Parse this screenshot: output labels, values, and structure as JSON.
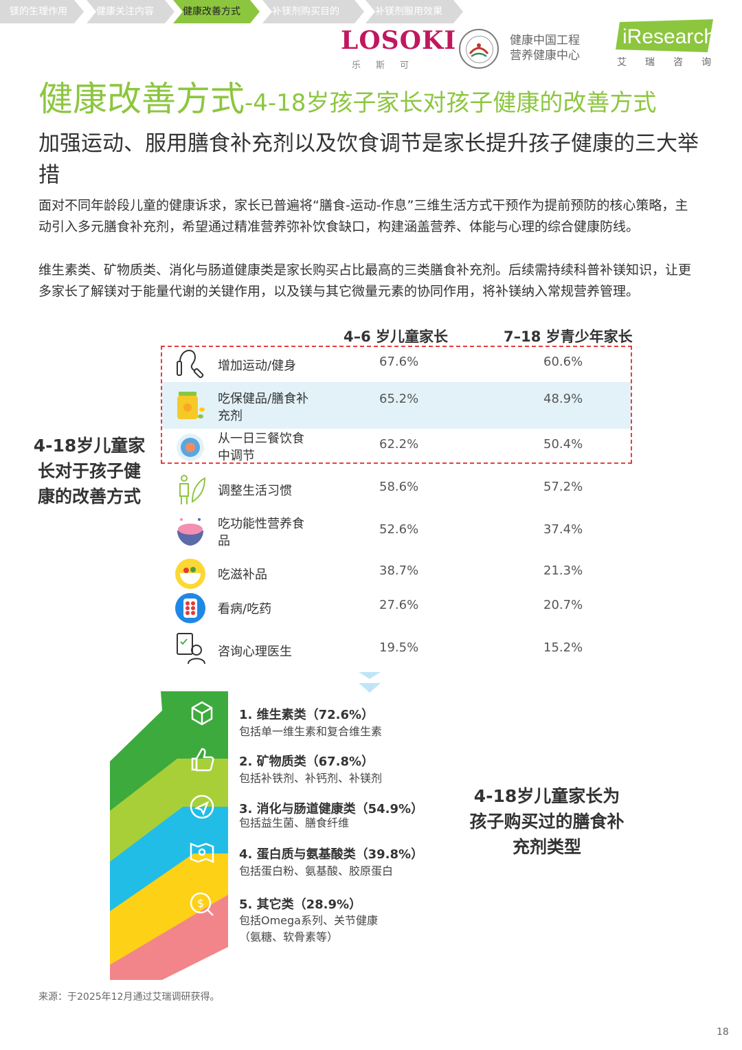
{
  "nav": {
    "items": [
      {
        "label": "镁的生理作用"
      },
      {
        "label": "健康关注内容"
      },
      {
        "label": "健康改善方式"
      },
      {
        "label": "补镁剂购买目的"
      },
      {
        "label": "补镁剂服用效果"
      }
    ],
    "active_index": 2
  },
  "logos": {
    "losoki": {
      "name": "LOSOKI",
      "sub": "乐斯可"
    },
    "center": {
      "line1": "健康中国工程",
      "line2": "营养健康中心"
    },
    "iresearch": {
      "name": "iResearch",
      "sub": "艾瑞咨询"
    }
  },
  "title": {
    "main": "健康改善方式",
    "rest": "-4-18岁孩子家长对孩子健康的改善方式"
  },
  "subtitle": "加强运动、服用膳食补充剂以及饮食调节是家长提升孩子健康的三大举措",
  "paragraphs": [
    "面对不同年龄段儿童的健康诉求，家长已普遍将“膳食-运动-作息”三维生活方式干预作为提前预防的核心策略，主动引入多元膳食补充剂，希望通过精准营养弥补饮食缺口，构建涵盖营养、体能与心理的综合健康防线。",
    "维生素类、矿物质类、消化与肠道健康类是家长购买占比最高的三类膳食补充剂。后续需持续科普补镁知识，让更多家长了解镁对于能量代谢的关键作用，以及镁与其它微量元素的协同作用，将补镁纳入常规营养管理。"
  ],
  "table": {
    "col_headers": [
      "4–6 岁儿童家长",
      "7–18 岁青少年家长"
    ],
    "side_label": "4-18岁儿童家长对于孩子健康的改善方式",
    "rows": [
      {
        "label": "增加运动/健身",
        "v1": "67.6%",
        "v2": "60.6%",
        "icon": "jump-rope-icon"
      },
      {
        "label": "吃保健品/膳食补充剂",
        "v1": "65.2%",
        "v2": "48.9%",
        "icon": "supplement-bottle-icon"
      },
      {
        "label": "从一日三餐饮食中调节",
        "v1": "62.2%",
        "v2": "50.4%",
        "icon": "meal-plate-icon"
      },
      {
        "label": "调整生活习惯",
        "v1": "58.6%",
        "v2": "57.2%",
        "icon": "lifestyle-leaf-icon"
      },
      {
        "label": "吃功能性营养食品",
        "v1": "52.6%",
        "v2": "37.4%",
        "icon": "food-bowl-icon"
      },
      {
        "label": "吃滋补品",
        "v1": "38.7%",
        "v2": "21.3%",
        "icon": "tonic-bowl-icon"
      },
      {
        "label": "看病/吃药",
        "v1": "27.6%",
        "v2": "20.7%",
        "icon": "pill-pack-icon"
      },
      {
        "label": "咨询心理医生",
        "v1": "19.5%",
        "v2": "15.2%",
        "icon": "psychologist-icon"
      }
    ],
    "highlighted_rows": [
      0,
      1,
      2
    ]
  },
  "supplements": {
    "label": "4-18岁儿童家长为孩子购买过的膳食补充剂类型",
    "items": [
      {
        "title": "1. 维生素类（72.6%）",
        "desc": [
          "包括单一维生素和复合维生素"
        ],
        "share": 72.6,
        "color": "#3daa3d",
        "icon": "cube-icon"
      },
      {
        "title": "2. 矿物质类（67.8%）",
        "desc": [
          "包括补铁剂、补钙剂、补镁剂"
        ],
        "share": 67.8,
        "color": "#a8cf38",
        "icon": "thumbs-up-icon"
      },
      {
        "title": "3. 消化与肠道健康类（54.9%）",
        "desc": [
          "包括益生菌、膳食纤维"
        ],
        "share": 54.9,
        "color": "#22bde6",
        "icon": "paper-plane-icon"
      },
      {
        "title": "4. 蛋白质与氨基酸类（39.8%）",
        "desc": [
          "包括蛋白粉、氨基酸、胶原蛋白"
        ],
        "share": 39.8,
        "color": "#fdd116",
        "icon": "map-pin-icon"
      },
      {
        "title": "5. 其它类（28.9%）",
        "desc": [
          "包括Omega系列、关节健康",
          "（氨糖、软骨素等）"
        ],
        "share": 28.9,
        "color": "#f2858a",
        "icon": "dollar-search-icon"
      }
    ]
  },
  "source": "来源：于2025年12月通过艾瑞调研获得。",
  "page_number": "18"
}
